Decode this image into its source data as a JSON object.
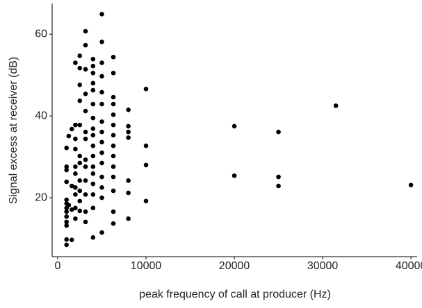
{
  "chart_data": {
    "type": "scatter",
    "x_label": "peak frequency of call at producer (Hz)",
    "y_label": "Signal excess at receiver (dB)",
    "xlim": [
      -630,
      40700
    ],
    "ylim": [
      5.6,
      67.5
    ],
    "xticks": [
      0,
      10000,
      20000,
      30000,
      40000
    ],
    "yticks": [
      20,
      40,
      60
    ],
    "grid": false,
    "color": "#000000",
    "x": [
      1000,
      1000,
      1000,
      1000,
      1000,
      1000,
      1000,
      1000,
      1000,
      1000,
      1000,
      1000,
      1000,
      1250,
      1250,
      1600,
      1600,
      1600,
      1600,
      2000,
      2000,
      2000,
      2000,
      2000,
      2000,
      2000,
      2000,
      2000,
      2000,
      2500,
      2500,
      2500,
      2500,
      2500,
      2500,
      2500,
      2500,
      2500,
      2500,
      2500,
      3150,
      3150,
      3150,
      3150,
      3150,
      3150,
      3150,
      3150,
      3150,
      3150,
      3150,
      3150,
      3150,
      4000,
      4000,
      4000,
      4000,
      4000,
      4000,
      4000,
      4000,
      4000,
      4000,
      4000,
      4000,
      4000,
      4000,
      4000,
      4000,
      4000,
      5000,
      5000,
      5000,
      5000,
      5000,
      5000,
      5000,
      5000,
      5000,
      5000,
      5000,
      5000,
      5000,
      5000,
      5000,
      6300,
      6300,
      6300,
      6300,
      6300,
      6300,
      6300,
      6300,
      6300,
      6300,
      6300,
      6300,
      6300,
      6300,
      8000,
      8000,
      8000,
      8000,
      8000,
      8000,
      8000,
      10000,
      10000,
      10000,
      10000,
      20000,
      20000,
      25000,
      25000,
      25000,
      31500,
      40000
    ],
    "y": [
      32.2,
      27.6,
      26.8,
      23.9,
      19.5,
      18.6,
      17.5,
      16.6,
      15.4,
      14.1,
      13.2,
      9.8,
      8.5,
      35.1,
      18.2,
      36.8,
      22.9,
      17.1,
      9.7,
      53,
      37.8,
      34.4,
      31.9,
      27.6,
      25.9,
      22.5,
      20.8,
      17.5,
      14.9,
      54.7,
      51.7,
      47.6,
      43.7,
      37.8,
      30.2,
      28.5,
      24.2,
      21.7,
      19.2,
      16.8,
      60.7,
      57.3,
      51.4,
      45.4,
      41.2,
      36.1,
      34.4,
      29.3,
      27.6,
      24.2,
      20.8,
      16.6,
      14.1,
      53.9,
      52.2,
      50.5,
      48,
      46.3,
      42.9,
      39.5,
      36.9,
      35.3,
      32.7,
      30.2,
      27.6,
      25.9,
      23.4,
      20.8,
      17.5,
      10.3,
      64.9,
      58.1,
      53,
      49.7,
      45.8,
      42.9,
      38.6,
      36.1,
      33.6,
      31,
      28.5,
      25.1,
      22.5,
      20,
      11.5,
      54.4,
      50.5,
      44.6,
      42.9,
      40.3,
      37.8,
      35.3,
      32.7,
      30.2,
      27.6,
      25.1,
      21.7,
      16.6,
      13.7,
      41.5,
      37.5,
      36.1,
      34.7,
      24.2,
      21.2,
      14.9,
      46.6,
      32.7,
      28,
      19.2,
      37.5,
      25.4,
      36.1,
      25.1,
      22.9,
      42.5,
      23.1
    ]
  }
}
